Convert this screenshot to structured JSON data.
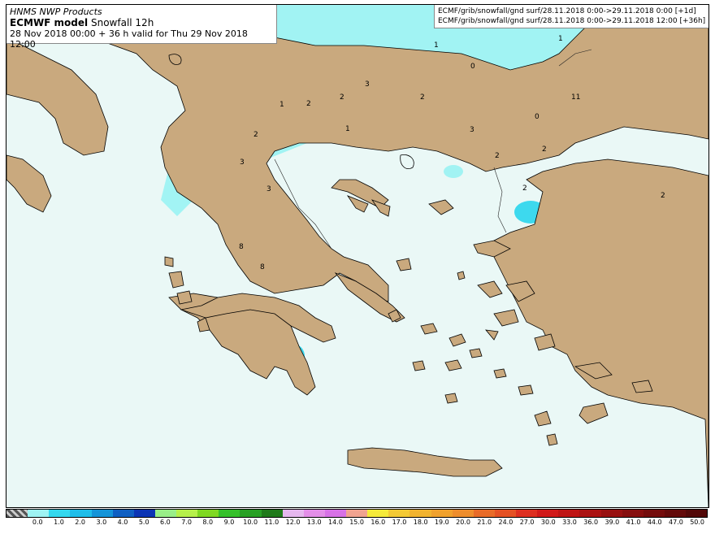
{
  "header": {
    "provider": "HNMS NWP Products",
    "model_name": "ECMWF model",
    "product": "Snowfall 12h",
    "validity": "28 Nov 2018 00:00 + 36 h valid for Thu 29 Nov 2018 12:00"
  },
  "source": {
    "line1": "ECMF/grib/snowfall/gnd surf/28.11.2018 0:00->29.11.2018 0:00 [+1d]",
    "line2": "ECMF/grib/snowfall/gnd surf/28.11.2018 0:00->29.11.2018 12:00 [+36h]"
  },
  "map": {
    "colors": {
      "sea": "#eaf8f6",
      "land": "#c9a97e",
      "coast": "#000000"
    },
    "contour_labels": [
      "1",
      "1",
      "0",
      "3",
      "2",
      "2",
      "1",
      "2",
      "11",
      "0",
      "3",
      "2",
      "2",
      "2",
      "3",
      "3",
      "2",
      "2",
      "8",
      "8",
      "1"
    ]
  },
  "legend": {
    "labels": [
      "0.0",
      "1.0",
      "2.0",
      "3.0",
      "4.0",
      "5.0",
      "6.0",
      "7.0",
      "8.0",
      "9.0",
      "10.0",
      "11.0",
      "12.0",
      "13.0",
      "14.0",
      "15.0",
      "16.0",
      "17.0",
      "18.0",
      "19.0",
      "20.0",
      "21.0",
      "24.0",
      "27.0",
      "30.0",
      "33.0",
      "36.0",
      "39.0",
      "41.0",
      "44.0",
      "47.0",
      "50.0"
    ],
    "colors": [
      "#9ef3f3",
      "#34d8ee",
      "#1fbde9",
      "#1594d8",
      "#0f5fc2",
      "#0b34b4",
      "#99ee88",
      "#b6f04a",
      "#7fd822",
      "#35c02a",
      "#28a024",
      "#1f7a1a",
      "#e5b7ee",
      "#e38ee8",
      "#d771e6",
      "#f0a390",
      "#f5ea3a",
      "#f3c935",
      "#f1b330",
      "#f0a12d",
      "#ee8d2c",
      "#e86b28",
      "#e45124",
      "#dd2f20",
      "#d11a1a",
      "#bf1515",
      "#ab1212",
      "#981010",
      "#860e0e",
      "#740c0c",
      "#630a0a",
      "#520808"
    ]
  }
}
